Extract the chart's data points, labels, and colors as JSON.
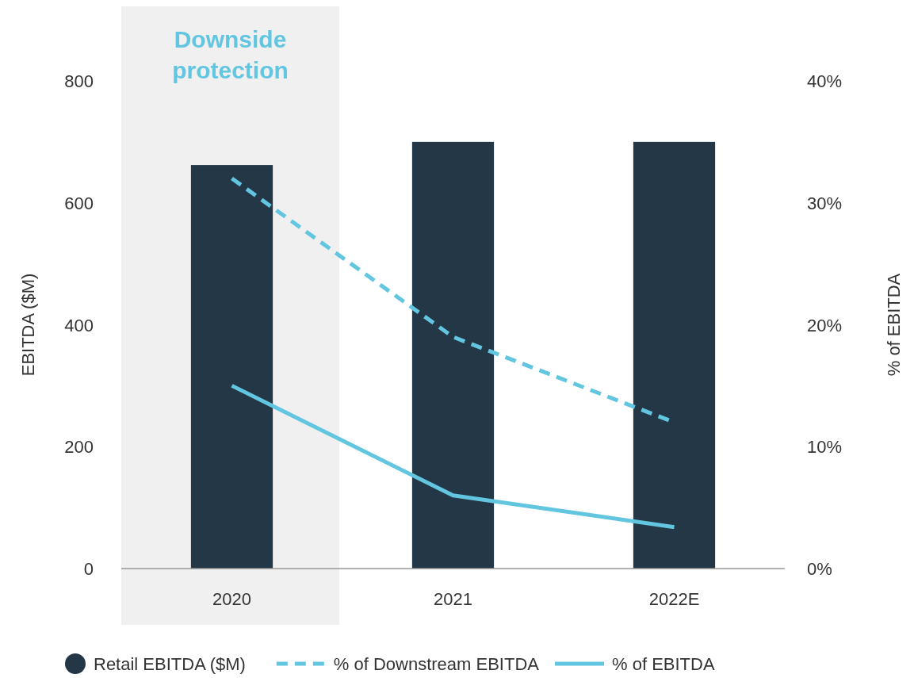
{
  "chart_data": {
    "type": "bar",
    "categories": [
      "2020",
      "2021",
      "2022E"
    ],
    "ylabel": "EBITDA ($M)",
    "y2label": "% of EBITDA",
    "ylim": [
      0,
      800
    ],
    "yticks": [
      0,
      200,
      400,
      600,
      800
    ],
    "y2lim": [
      0,
      40
    ],
    "y2ticks": [
      {
        "value": 0,
        "label": "0%"
      },
      {
        "value": 10,
        "label": "10%"
      },
      {
        "value": 20,
        "label": "20%"
      },
      {
        "value": 30,
        "label": "30%"
      },
      {
        "value": 40,
        "label": "40%"
      }
    ],
    "series": [
      {
        "name": "Retail EBITDA ($M)",
        "color": "#243746",
        "values": [
          662,
          700,
          700
        ]
      },
      {
        "name": "% of Downstream EBITDA",
        "type": "line",
        "axis": "y2",
        "line_style": "dashed",
        "color": "#62c6e0",
        "values": [
          32,
          19,
          12
        ]
      },
      {
        "name": "% of EBITDA",
        "type": "line",
        "axis": "y2",
        "line_style": "solid",
        "color": "#62c6e0",
        "values": [
          15,
          6,
          3.4
        ]
      }
    ],
    "bands": [
      {
        "axis": "x",
        "from": "2020",
        "to": "2020",
        "label": "Downside protection",
        "color": "#f0f0f0"
      }
    ],
    "legend": "bottom",
    "grid": false,
    "marker": "none"
  }
}
